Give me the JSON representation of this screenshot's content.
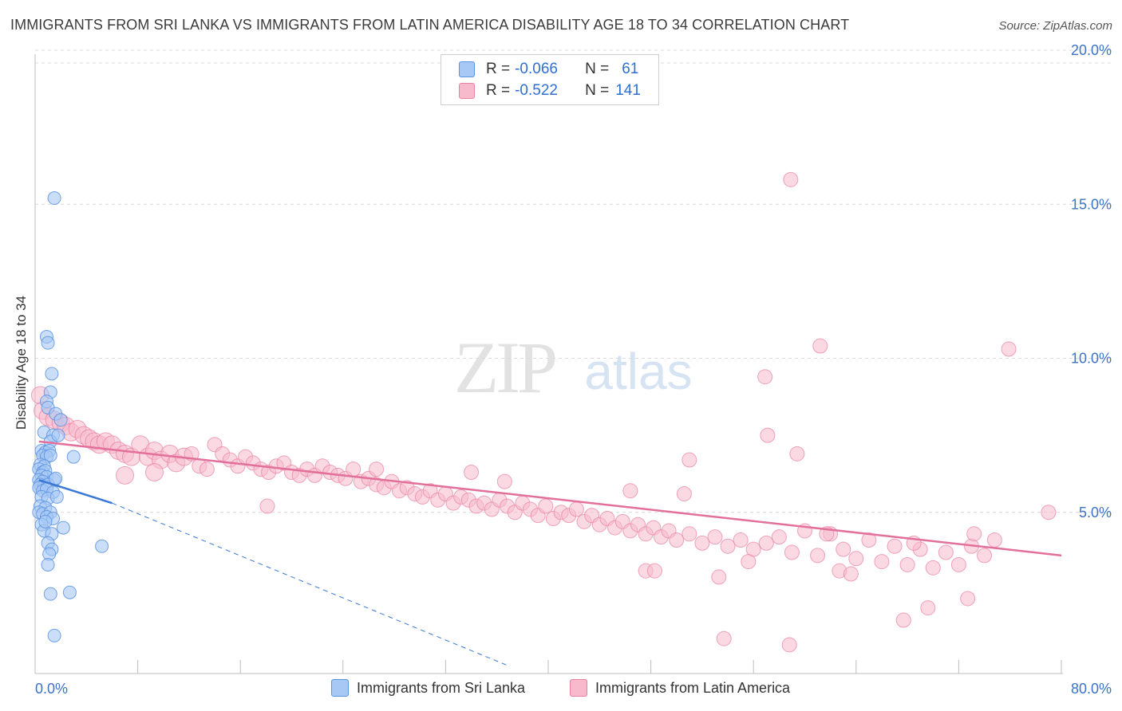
{
  "title": "IMMIGRANTS FROM SRI LANKA VS IMMIGRANTS FROM LATIN AMERICA DISABILITY AGE 18 TO 34 CORRELATION CHART",
  "source": "Source: ZipAtlas.com",
  "watermark": {
    "zip": "ZIP",
    "atlas": "atlas"
  },
  "legend": {
    "rows": [
      {
        "r_label": "R =",
        "r_value": "-0.066",
        "n_label": "N =",
        "n_value": "61",
        "color": "#a7c8f5"
      },
      {
        "r_label": "R =",
        "r_value": "-0.522",
        "n_label": "N =",
        "n_value": "141",
        "color": "#f7b9cc"
      }
    ]
  },
  "bottom_legend": [
    "Immigrants from Sri Lanka",
    "Immigrants from Latin America"
  ],
  "colors": {
    "blue_fill": "#a7c8f5",
    "blue_stroke": "#5b93e3",
    "blue_line": "#3a78d6",
    "pink_fill": "#f7b9cc",
    "pink_stroke": "#ea7fa2",
    "pink_line": "#e3709a",
    "tick_label": "#3d72c9",
    "grid": "#d9d9d9"
  },
  "chart_data": {
    "type": "scatter",
    "title": "IMMIGRANTS FROM SRI LANKA VS IMMIGRANTS FROM LATIN AMERICA DISABILITY AGE 18 TO 34 CORRELATION CHART",
    "xlabel": "",
    "ylabel": "Disability Age 18 to 34",
    "xlim": [
      0,
      80
    ],
    "ylim": [
      0,
      20
    ],
    "x_tick_labels": [
      "0.0%",
      "80.0%"
    ],
    "y_ticks": [
      5,
      10,
      15,
      20
    ],
    "y_tick_labels": [
      "5.0%",
      "10.0%",
      "15.0%",
      "20.0%"
    ],
    "grid": "horizontal dashed",
    "series": [
      {
        "name": "Immigrants from Sri Lanka",
        "color": "#a7c8f5",
        "R": -0.066,
        "N": 61,
        "trend": {
          "x": [
            0.3,
            6.0
          ],
          "y": [
            6.05,
            5.3
          ],
          "dashed_to": [
            37.0,
            0.0
          ]
        },
        "points": [
          [
            1.5,
            15.2
          ],
          [
            0.9,
            10.7
          ],
          [
            1.0,
            10.5
          ],
          [
            1.3,
            9.5
          ],
          [
            1.2,
            8.9
          ],
          [
            0.9,
            8.6
          ],
          [
            1.0,
            8.4
          ],
          [
            1.6,
            8.2
          ],
          [
            2.0,
            8.0
          ],
          [
            0.7,
            7.6
          ],
          [
            1.4,
            7.5
          ],
          [
            1.2,
            7.3
          ],
          [
            1.8,
            7.5
          ],
          [
            0.5,
            7.0
          ],
          [
            0.8,
            6.95
          ],
          [
            1.1,
            7.0
          ],
          [
            0.6,
            6.85
          ],
          [
            0.9,
            6.8
          ],
          [
            1.2,
            6.85
          ],
          [
            3.0,
            6.8
          ],
          [
            0.4,
            6.55
          ],
          [
            0.7,
            6.5
          ],
          [
            0.3,
            6.4
          ],
          [
            0.6,
            6.3
          ],
          [
            0.8,
            6.35
          ],
          [
            0.5,
            6.2
          ],
          [
            0.9,
            6.15
          ],
          [
            0.3,
            6.05
          ],
          [
            0.6,
            6.0
          ],
          [
            1.5,
            6.05
          ],
          [
            0.4,
            5.9
          ],
          [
            0.7,
            5.85
          ],
          [
            1.0,
            5.9
          ],
          [
            0.3,
            5.8
          ],
          [
            0.6,
            5.7
          ],
          [
            0.9,
            5.75
          ],
          [
            1.4,
            5.65
          ],
          [
            0.5,
            5.5
          ],
          [
            1.0,
            5.45
          ],
          [
            1.7,
            5.5
          ],
          [
            0.4,
            5.2
          ],
          [
            0.8,
            5.15
          ],
          [
            0.3,
            5.0
          ],
          [
            0.6,
            4.95
          ],
          [
            1.2,
            5.0
          ],
          [
            0.9,
            4.85
          ],
          [
            1.4,
            4.8
          ],
          [
            0.5,
            4.6
          ],
          [
            2.2,
            4.5
          ],
          [
            0.7,
            4.4
          ],
          [
            1.3,
            4.3
          ],
          [
            1.0,
            4.0
          ],
          [
            5.2,
            3.9
          ],
          [
            1.3,
            3.8
          ],
          [
            1.1,
            3.65
          ],
          [
            1.0,
            3.3
          ],
          [
            2.7,
            2.4
          ],
          [
            1.2,
            2.35
          ],
          [
            1.5,
            1.0
          ],
          [
            0.8,
            4.7
          ],
          [
            1.6,
            6.1
          ]
        ]
      },
      {
        "name": "Immigrants from Latin America",
        "color": "#f7b9cc",
        "R": -0.522,
        "N": 141,
        "trend": {
          "x": [
            0.3,
            80.0
          ],
          "y": [
            7.3,
            3.6
          ]
        },
        "points": [
          [
            0.4,
            8.8
          ],
          [
            0.6,
            8.3
          ],
          [
            1.0,
            8.1
          ],
          [
            1.5,
            8.0
          ],
          [
            2.0,
            7.9
          ],
          [
            2.4,
            7.8
          ],
          [
            2.8,
            7.6
          ],
          [
            3.3,
            7.7
          ],
          [
            3.8,
            7.5
          ],
          [
            4.2,
            7.4
          ],
          [
            4.6,
            7.3
          ],
          [
            5.0,
            7.2
          ],
          [
            5.5,
            7.3
          ],
          [
            6.0,
            7.2
          ],
          [
            6.5,
            7.0
          ],
          [
            7.0,
            6.9
          ],
          [
            7.5,
            6.8
          ],
          [
            8.2,
            7.2
          ],
          [
            8.8,
            6.8
          ],
          [
            9.3,
            7.0
          ],
          [
            9.8,
            6.7
          ],
          [
            10.5,
            6.9
          ],
          [
            11.0,
            6.6
          ],
          [
            11.6,
            6.8
          ],
          [
            12.2,
            6.9
          ],
          [
            12.8,
            6.5
          ],
          [
            13.4,
            6.4
          ],
          [
            14.0,
            7.2
          ],
          [
            14.6,
            6.9
          ],
          [
            15.2,
            6.7
          ],
          [
            15.8,
            6.5
          ],
          [
            16.4,
            6.8
          ],
          [
            17.0,
            6.6
          ],
          [
            17.6,
            6.4
          ],
          [
            18.2,
            6.3
          ],
          [
            18.8,
            6.5
          ],
          [
            19.4,
            6.6
          ],
          [
            20.0,
            6.3
          ],
          [
            20.6,
            6.2
          ],
          [
            21.2,
            6.4
          ],
          [
            21.8,
            6.2
          ],
          [
            22.4,
            6.5
          ],
          [
            23.0,
            6.3
          ],
          [
            23.6,
            6.2
          ],
          [
            24.2,
            6.1
          ],
          [
            24.8,
            6.4
          ],
          [
            25.4,
            6.0
          ],
          [
            26.0,
            6.1
          ],
          [
            26.6,
            5.9
          ],
          [
            27.2,
            5.8
          ],
          [
            27.8,
            6.0
          ],
          [
            28.4,
            5.7
          ],
          [
            29.0,
            5.8
          ],
          [
            29.6,
            5.6
          ],
          [
            30.2,
            5.5
          ],
          [
            30.8,
            5.7
          ],
          [
            31.4,
            5.4
          ],
          [
            32.0,
            5.6
          ],
          [
            32.6,
            5.3
          ],
          [
            33.2,
            5.5
          ],
          [
            33.8,
            5.4
          ],
          [
            34.4,
            5.2
          ],
          [
            35.0,
            5.3
          ],
          [
            35.6,
            5.1
          ],
          [
            36.2,
            5.4
          ],
          [
            36.8,
            5.2
          ],
          [
            37.4,
            5.0
          ],
          [
            38.0,
            5.3
          ],
          [
            38.6,
            5.1
          ],
          [
            39.2,
            4.9
          ],
          [
            39.8,
            5.2
          ],
          [
            40.4,
            4.8
          ],
          [
            41.0,
            5.0
          ],
          [
            41.6,
            4.9
          ],
          [
            42.2,
            5.1
          ],
          [
            42.8,
            4.7
          ],
          [
            43.4,
            4.9
          ],
          [
            44.0,
            4.6
          ],
          [
            44.6,
            4.8
          ],
          [
            45.2,
            4.5
          ],
          [
            45.8,
            4.7
          ],
          [
            46.4,
            4.4
          ],
          [
            47.0,
            4.6
          ],
          [
            47.6,
            4.3
          ],
          [
            48.2,
            4.5
          ],
          [
            48.8,
            4.2
          ],
          [
            49.4,
            4.4
          ],
          [
            50.0,
            4.1
          ],
          [
            51.0,
            4.3
          ],
          [
            52.0,
            4.0
          ],
          [
            53.0,
            4.2
          ],
          [
            54.0,
            3.9
          ],
          [
            55.0,
            4.1
          ],
          [
            56.0,
            3.8
          ],
          [
            57.0,
            4.0
          ],
          [
            58.0,
            4.2
          ],
          [
            59.0,
            3.7
          ],
          [
            60.0,
            4.4
          ],
          [
            61.0,
            3.6
          ],
          [
            62.0,
            4.3
          ],
          [
            63.0,
            3.8
          ],
          [
            64.0,
            3.5
          ],
          [
            65.0,
            4.1
          ],
          [
            66.0,
            3.4
          ],
          [
            67.0,
            3.9
          ],
          [
            68.0,
            3.3
          ],
          [
            69.0,
            3.8
          ],
          [
            70.0,
            3.2
          ],
          [
            71.0,
            3.7
          ],
          [
            72.0,
            3.3
          ],
          [
            73.0,
            3.9
          ],
          [
            74.0,
            3.6
          ],
          [
            58.9,
            15.8
          ],
          [
            61.2,
            10.4
          ],
          [
            75.9,
            10.3
          ],
          [
            56.9,
            9.4
          ],
          [
            57.1,
            7.5
          ],
          [
            59.4,
            6.9
          ],
          [
            51.0,
            6.7
          ],
          [
            50.6,
            5.6
          ],
          [
            46.4,
            5.7
          ],
          [
            36.6,
            6.0
          ],
          [
            34.0,
            6.3
          ],
          [
            26.6,
            6.4
          ],
          [
            18.1,
            5.2
          ],
          [
            9.3,
            6.3
          ],
          [
            7.0,
            6.2
          ],
          [
            79.0,
            5.0
          ],
          [
            61.7,
            4.3
          ],
          [
            73.2,
            4.3
          ],
          [
            47.6,
            3.1
          ],
          [
            48.3,
            3.1
          ],
          [
            53.3,
            2.9
          ],
          [
            62.7,
            3.1
          ],
          [
            63.6,
            3.0
          ],
          [
            72.7,
            2.2
          ],
          [
            69.6,
            1.9
          ],
          [
            67.7,
            1.5
          ],
          [
            58.8,
            0.7
          ],
          [
            53.7,
            0.9
          ],
          [
            68.5,
            4.0
          ],
          [
            74.8,
            4.1
          ],
          [
            55.6,
            3.4
          ]
        ]
      }
    ]
  }
}
